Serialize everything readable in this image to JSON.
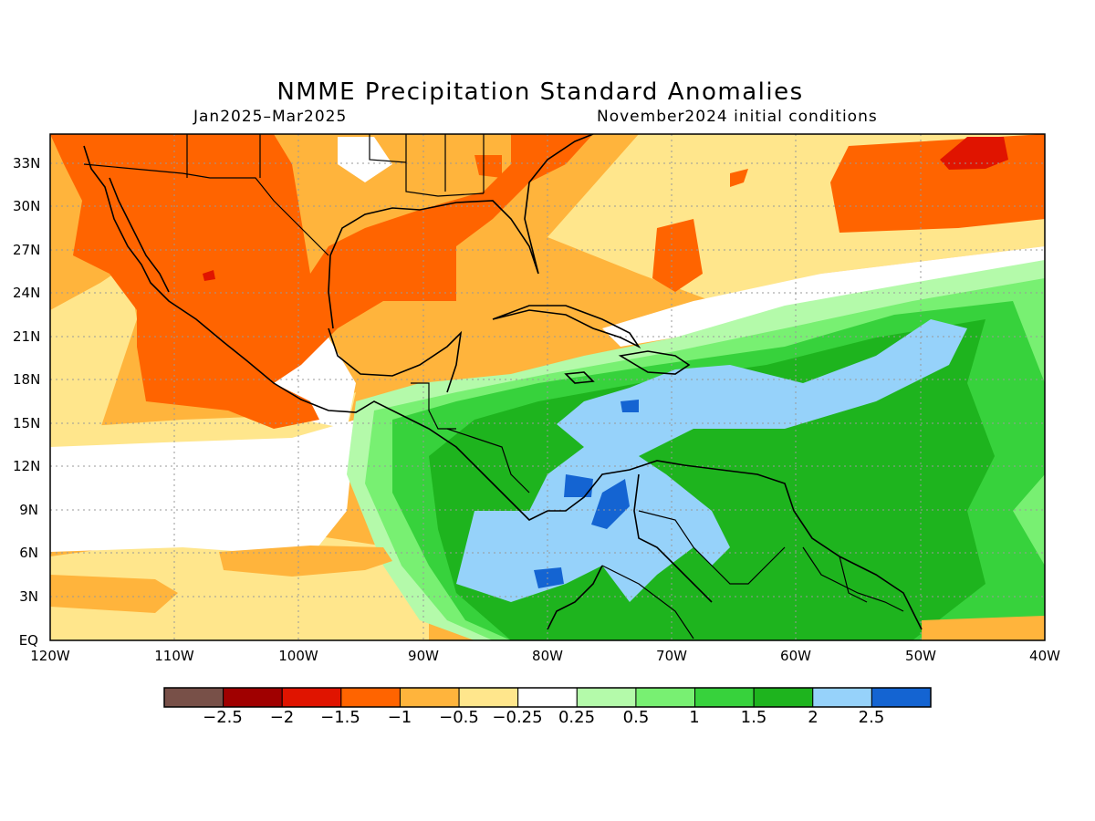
{
  "title": "NMME Precipitation Standard Anomalies",
  "period": "Jan2025–Mar2025",
  "initial_conditions": "November2024 initial conditions",
  "lat_ticks": [
    "33N",
    "30N",
    "27N",
    "24N",
    "21N",
    "18N",
    "15N",
    "12N",
    "9N",
    "6N",
    "3N",
    "EQ"
  ],
  "lon_ticks": [
    "120W",
    "110W",
    "100W",
    "90W",
    "80W",
    "70W",
    "60W",
    "50W",
    "40W"
  ],
  "map_extent": {
    "lon_min": -120,
    "lon_max": -40,
    "lat_min": 0,
    "lat_max": 35
  },
  "colorbar": {
    "labels": [
      "−2.5",
      "−2",
      "−1.5",
      "−1",
      "−0.5",
      "−0.25",
      "0.25",
      "0.5",
      "1",
      "1.5",
      "2",
      "2.5"
    ],
    "colors": [
      "#785048",
      "#a00000",
      "#e01400",
      "#ff6400",
      "#ffb43c",
      "#ffe68c",
      "#ffffff",
      "#b4faaa",
      "#78f072",
      "#37d23c",
      "#1eb41e",
      "#96d2fa",
      "#1464d2"
    ]
  }
}
